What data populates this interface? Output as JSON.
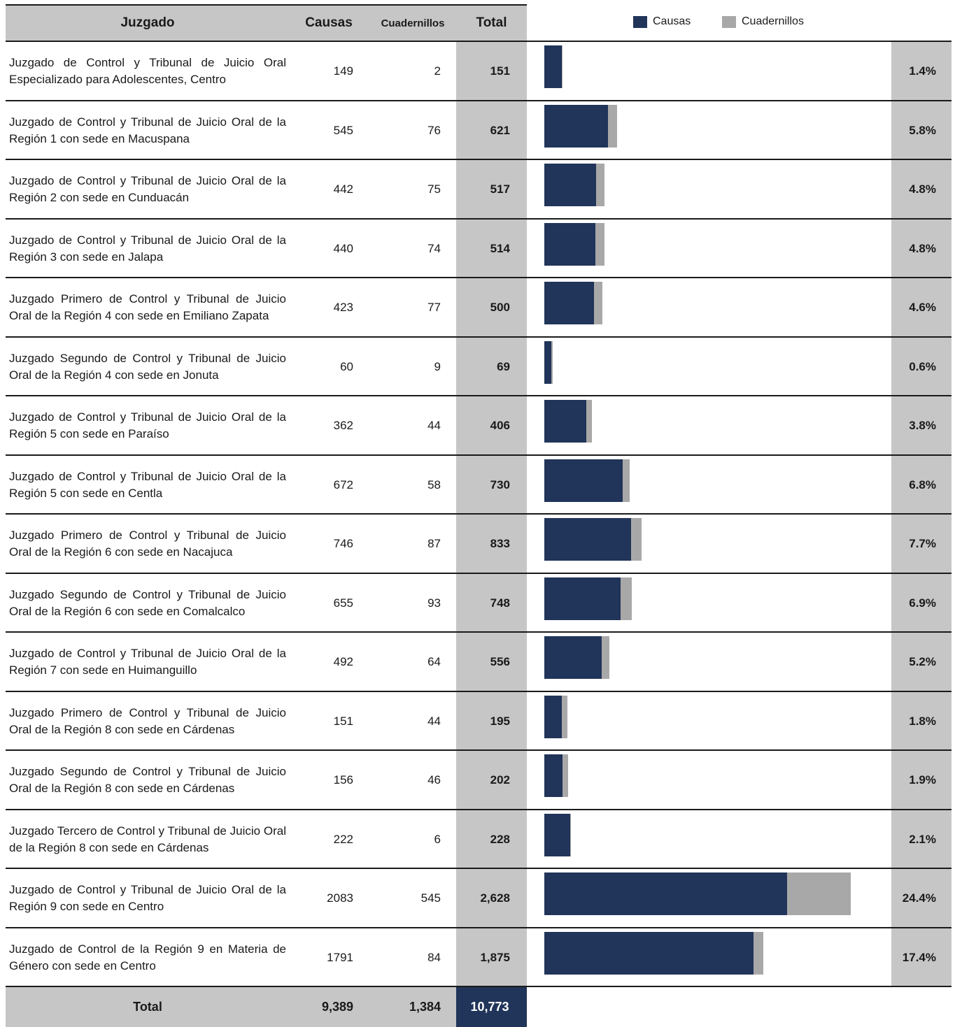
{
  "headers": {
    "juzgado": "Juzgado",
    "causas": "Causas",
    "cuadernillos": "Cuadernillos",
    "total": "Total"
  },
  "legend": {
    "causas": "Causas",
    "cuadernillos": "Cuadernillos"
  },
  "colors": {
    "causas": "#213459",
    "cuadernillos": "#a8a8a8",
    "highlight": "#c6c6c6"
  },
  "footer": {
    "label": "Total",
    "causas": "9,389",
    "cuadernillos": "1,384",
    "total": "10,773"
  },
  "chart_data": {
    "type": "bar",
    "orientation": "horizontal",
    "stacked": true,
    "series": [
      {
        "name": "Causas",
        "values": [
          149,
          545,
          442,
          440,
          423,
          60,
          362,
          672,
          746,
          655,
          492,
          151,
          156,
          222,
          2083,
          1791
        ]
      },
      {
        "name": "Cuadernillos",
        "values": [
          2,
          76,
          75,
          74,
          77,
          9,
          44,
          58,
          87,
          93,
          64,
          44,
          46,
          6,
          545,
          84
        ]
      }
    ],
    "xlim": [
      0,
      3400
    ],
    "rows": [
      {
        "name": "Juzgado de Control y Tribunal de Juicio Oral Especializado para Adolescentes, Centro",
        "causas": "149",
        "cuadernillos": "2",
        "total": "151",
        "pct": "1.4%"
      },
      {
        "name": "Juzgado de Control y Tribunal de Juicio Oral de la Región 1 con sede en Macuspana",
        "causas": "545",
        "cuadernillos": "76",
        "total": "621",
        "pct": "5.8%"
      },
      {
        "name": "Juzgado de Control y Tribunal de Juicio Oral de la Región 2 con sede en Cunduacán",
        "causas": "442",
        "cuadernillos": "75",
        "total": "517",
        "pct": "4.8%"
      },
      {
        "name": "Juzgado de Control y Tribunal de Juicio Oral de la Región 3 con sede en Jalapa",
        "causas": "440",
        "cuadernillos": "74",
        "total": "514",
        "pct": "4.8%"
      },
      {
        "name": "Juzgado Primero de Control y Tribunal de Juicio Oral de la Región 4 con sede en Emiliano Zapata",
        "causas": "423",
        "cuadernillos": "77",
        "total": "500",
        "pct": "4.6%"
      },
      {
        "name": "Juzgado Segundo de Control y Tribunal de Juicio Oral de la Región 4 con sede en Jonuta",
        "causas": "60",
        "cuadernillos": "9",
        "total": "69",
        "pct": "0.6%"
      },
      {
        "name": "Juzgado de Control y Tribunal de Juicio Oral de la Región 5 con sede en Paraíso",
        "causas": "362",
        "cuadernillos": "44",
        "total": "406",
        "pct": "3.8%"
      },
      {
        "name": "Juzgado de Control y Tribunal de Juicio Oral de la Región 5 con sede en Centla",
        "causas": "672",
        "cuadernillos": "58",
        "total": "730",
        "pct": "6.8%"
      },
      {
        "name": "Juzgado Primero de Control y Tribunal de Juicio Oral de la Región 6 con sede en Nacajuca",
        "causas": "746",
        "cuadernillos": "87",
        "total": "833",
        "pct": "7.7%"
      },
      {
        "name": "Juzgado Segundo de Control y Tribunal de Juicio Oral de la Región 6 con sede en Comalcalco",
        "causas": "655",
        "cuadernillos": "93",
        "total": "748",
        "pct": "6.9%"
      },
      {
        "name": "Juzgado de Control y Tribunal de Juicio Oral de la Región 7 con sede en Huimanguillo",
        "causas": "492",
        "cuadernillos": "64",
        "total": "556",
        "pct": "5.2%"
      },
      {
        "name": "Juzgado Primero de Control y Tribunal de Juicio Oral de la Región 8 con sede en Cárdenas",
        "causas": "151",
        "cuadernillos": "44",
        "total": "195",
        "pct": "1.8%"
      },
      {
        "name": "Juzgado Segundo de Control y Tribunal de Juicio Oral de la Región 8 con sede en Cárdenas",
        "causas": "156",
        "cuadernillos": "46",
        "total": "202",
        "pct": "1.9%"
      },
      {
        "name": "Juzgado Tercero de Control y Tribunal de Juicio Oral de la Región 8 con sede en Cárdenas",
        "causas": "222",
        "cuadernillos": "6",
        "total": "228",
        "pct": "2.1%"
      },
      {
        "name": "Juzgado de Control y Tribunal de Juicio Oral de la Región 9 con sede en Centro",
        "causas": "2083",
        "cuadernillos": "545",
        "total": "2,628",
        "pct": "24.4%"
      },
      {
        "name": "Juzgado de Control de la Región 9 en Materia de Género con sede en Centro",
        "causas": "1791",
        "cuadernillos": "84",
        "total": "1,875",
        "pct": "17.4%"
      }
    ]
  }
}
